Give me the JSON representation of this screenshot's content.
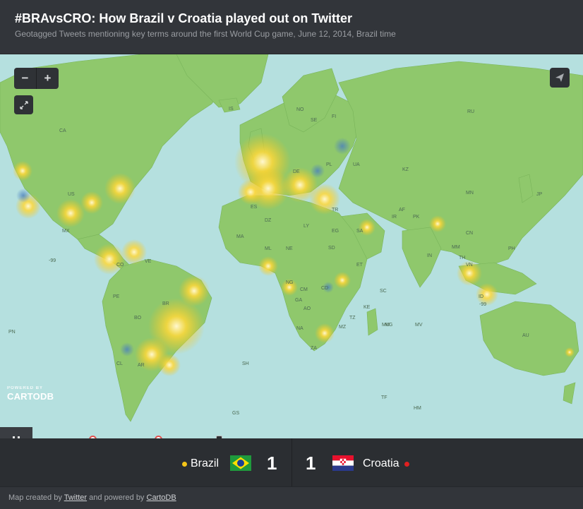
{
  "header": {
    "title": "#BRAvsCRO: How Brazil v Croatia played out on Twitter",
    "subtitle": "Geotagged Tweets mentioning key terms around the first World Cup game, June 12, 2014, Brazil time"
  },
  "map_controls": {
    "zoom_out": "−",
    "zoom_in": "+",
    "fullscreen_icon": "expand-icon",
    "share_icon": "paper-plane-icon"
  },
  "watermark": {
    "small": "POWERED BY",
    "brand": "CARTODB"
  },
  "map_labels": [
    {
      "t": "CA"
    },
    {
      "t": "US"
    },
    {
      "t": "MX"
    },
    {
      "t": "BR"
    },
    {
      "t": "AR"
    },
    {
      "t": "IS"
    },
    {
      "t": "RU"
    },
    {
      "t": "KZ"
    },
    {
      "t": "CN"
    },
    {
      "t": "IN"
    },
    {
      "t": "AU"
    },
    {
      "t": "DZ"
    },
    {
      "t": "LY"
    },
    {
      "t": "EG"
    },
    {
      "t": "SD"
    },
    {
      "t": "NE"
    },
    {
      "t": "ML"
    },
    {
      "t": "SA"
    },
    {
      "t": "IR"
    },
    {
      "t": "MN"
    },
    {
      "t": "ID"
    },
    {
      "t": "PE"
    },
    {
      "t": "CO"
    },
    {
      "t": "VE"
    },
    {
      "t": "BO"
    },
    {
      "t": "CL"
    },
    {
      "t": "CD"
    },
    {
      "t": "AO"
    },
    {
      "t": "ZA"
    },
    {
      "t": "NA"
    },
    {
      "t": "MZ"
    },
    {
      "t": "MG"
    },
    {
      "t": "PN"
    },
    {
      "t": "SH"
    },
    {
      "t": "GS"
    },
    {
      "t": "HM"
    },
    {
      "t": "TF"
    },
    {
      "t": "MU"
    },
    {
      "t": "SC"
    },
    {
      "t": "MV"
    },
    {
      "t": "PK"
    },
    {
      "t": "AF"
    },
    {
      "t": "TR"
    },
    {
      "t": "-99"
    },
    {
      "t": "-99"
    },
    {
      "t": "PH"
    },
    {
      "t": "JP"
    },
    {
      "t": "NO"
    },
    {
      "t": "SE"
    },
    {
      "t": "FI"
    },
    {
      "t": "PL"
    },
    {
      "t": "UA"
    },
    {
      "t": "DE"
    },
    {
      "t": "ES"
    },
    {
      "t": "MA"
    },
    {
      "t": "NG"
    },
    {
      "t": "ET"
    },
    {
      "t": "KE"
    },
    {
      "t": "TZ"
    },
    {
      "t": "CM"
    },
    {
      "t": "GA"
    },
    {
      "t": "TH"
    },
    {
      "t": "MM"
    },
    {
      "t": "VN"
    }
  ],
  "timeline": {
    "pause_icon": "pause-icon",
    "progress": 0.37
  },
  "scoreboard": {
    "home": {
      "name": "Brazil",
      "score": "1",
      "dot_color": "#f5c518"
    },
    "away": {
      "name": "Croatia",
      "score": "1",
      "dot_color": "#e02020"
    }
  },
  "footer": {
    "prefix": "Map created by",
    "link1": "Twitter",
    "middle": "and powered by",
    "link2": "CartoDB"
  },
  "colors": {
    "ocean": "#b5e0df",
    "land": "#8fc86c",
    "tweet_brazil": "#f5c518",
    "tweet_croatia": "#4a7fbf"
  }
}
